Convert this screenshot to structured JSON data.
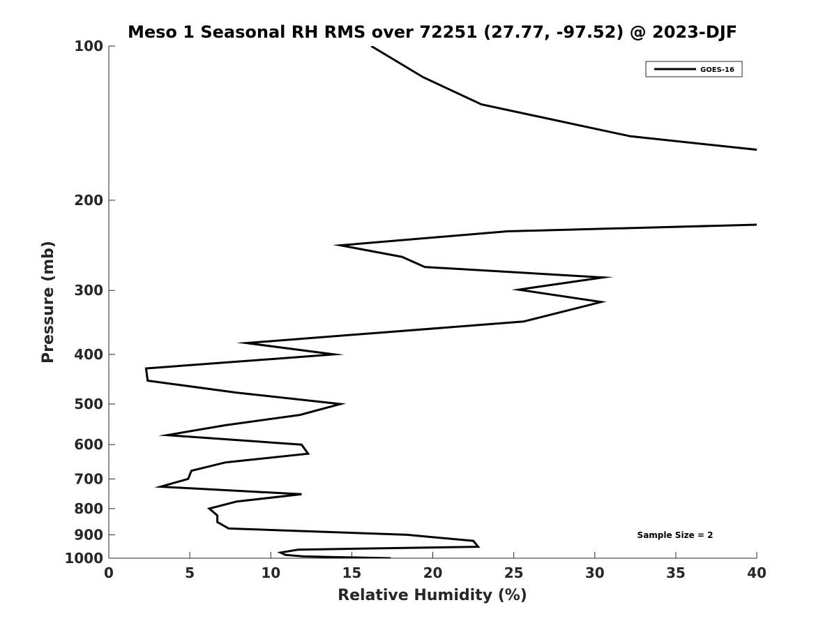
{
  "chart_data": {
    "type": "line",
    "title": "Meso 1 Seasonal RH RMS over 72251 (27.77, -97.52) @ 2023-DJF",
    "xlabel": "Relative Humidity (%)",
    "ylabel": "Pressure (mb)",
    "xlim": [
      0,
      40
    ],
    "ylim": [
      100,
      1000
    ],
    "y_scale": "log",
    "y_reversed": true,
    "x_ticks": [
      "0",
      "5",
      "10",
      "15",
      "20",
      "25",
      "30",
      "35",
      "40"
    ],
    "y_ticks": [
      "100",
      "200",
      "300",
      "400",
      "500",
      "600",
      "700",
      "800",
      "900",
      "1000"
    ],
    "grid": false,
    "legend_position": "top-right",
    "series": [
      {
        "name": "GOES-16",
        "color": "#000000",
        "points": [
          [
            16.2,
            100
          ],
          [
            19.4,
            115
          ],
          [
            23.0,
            130
          ],
          [
            32.2,
            150
          ],
          [
            40.5,
            160
          ],
          [
            40.5,
            223
          ],
          [
            24.6,
            230
          ],
          [
            14.3,
            245
          ],
          [
            18.1,
            258
          ],
          [
            19.5,
            270
          ],
          [
            30.5,
            283
          ],
          [
            25.3,
            299
          ],
          [
            30.4,
            316
          ],
          [
            25.6,
            345
          ],
          [
            8.5,
            380
          ],
          [
            13.9,
            400
          ],
          [
            2.3,
            426
          ],
          [
            2.4,
            450
          ],
          [
            7.9,
            475
          ],
          [
            14.3,
            500
          ],
          [
            11.8,
            525
          ],
          [
            7.2,
            550
          ],
          [
            3.6,
            575
          ],
          [
            11.9,
            600
          ],
          [
            12.3,
            625
          ],
          [
            7.2,
            650
          ],
          [
            5.1,
            675
          ],
          [
            4.9,
            700
          ],
          [
            3.2,
            725
          ],
          [
            11.9,
            750
          ],
          [
            7.9,
            775
          ],
          [
            6.2,
            800
          ],
          [
            6.7,
            825
          ],
          [
            6.7,
            850
          ],
          [
            7.4,
            875
          ],
          [
            18.4,
            900
          ],
          [
            22.5,
            925
          ],
          [
            22.8,
            950
          ],
          [
            11.7,
            962
          ],
          [
            10.6,
            975
          ],
          [
            10.9,
            985
          ],
          [
            12.0,
            992
          ],
          [
            17.4,
            1000
          ]
        ]
      }
    ],
    "annotations": [
      "Sample Size = 2"
    ]
  }
}
